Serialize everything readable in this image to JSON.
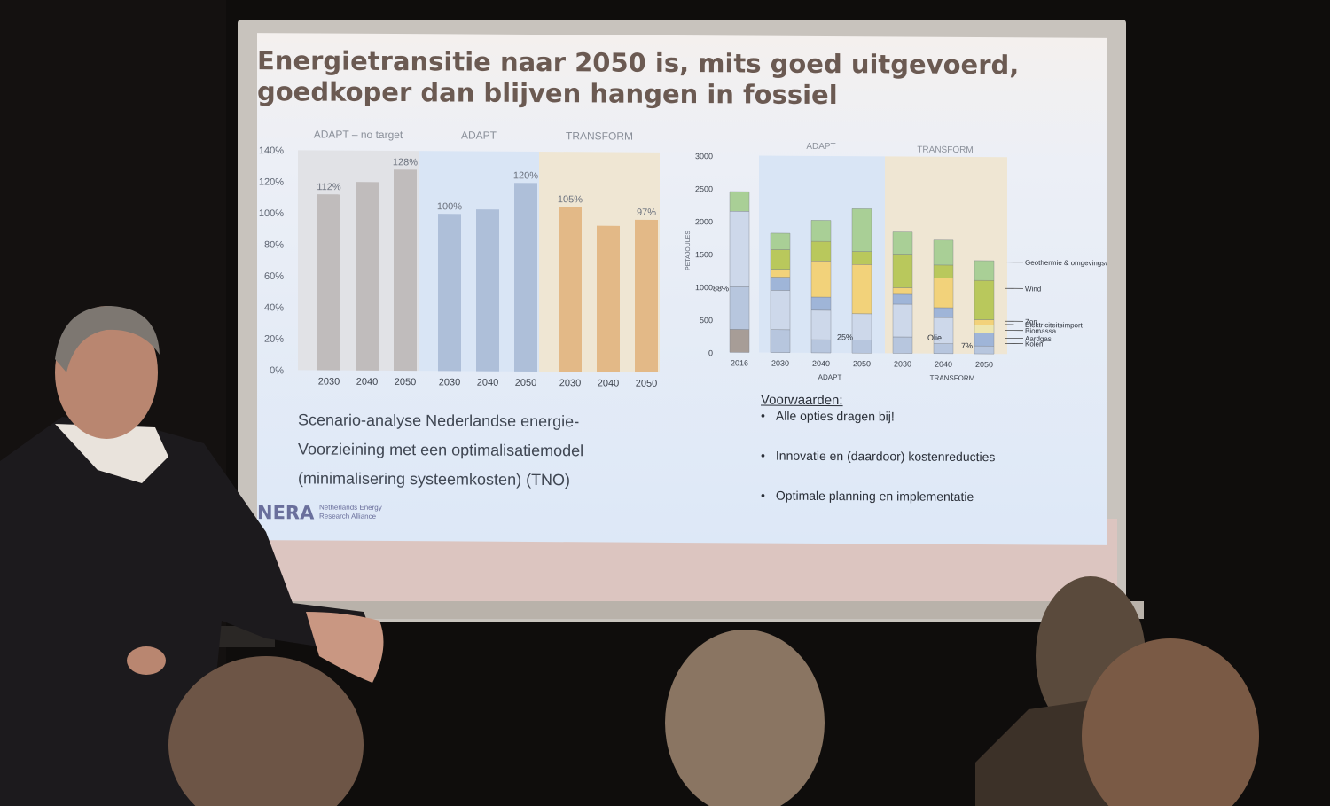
{
  "slide": {
    "title": "Energietransitie naar 2050 is, mits goed uitgevoerd,\ngoedkoper dan blijven hangen in fossiel",
    "description": "Scenario-analyse Nederlandse energie-\nVoorzieining met een optimalisatiemodel\n(minimalisering systeemkosten) (TNO)",
    "conditions": {
      "title": "Voorwaarden:",
      "items": [
        "Alle opties dragen bij!",
        "Innovatie en (daardoor) kostenreducties",
        "Optimale planning en implementatie"
      ]
    },
    "logo": {
      "mark": "NERA",
      "text": "Netherlands Energy\nResearch Alliance"
    }
  },
  "colors": {
    "slide_bg": "#e6edf8",
    "title": "#6b5a52",
    "gray_bar": "#c0bcbc",
    "blue_bar": "#aebfd9",
    "orange_bar": "#e3b987",
    "gray_region": "#e1e2e6",
    "blue_region": "#d9e5f5",
    "orange_region": "#efe6d3"
  },
  "chart_data": [
    {
      "type": "bar",
      "groups": [
        "ADAPT – no target",
        "ADAPT",
        "TRANSFORM"
      ],
      "categories": [
        "2030",
        "2040",
        "2050"
      ],
      "series": [
        {
          "name": "ADAPT – no target",
          "values": [
            112,
            120,
            128
          ],
          "labels": [
            "112%",
            "",
            "128%"
          ]
        },
        {
          "name": "ADAPT",
          "values": [
            100,
            103,
            120
          ],
          "labels": [
            "100%",
            "",
            "120%"
          ]
        },
        {
          "name": "TRANSFORM",
          "values": [
            105,
            93,
            97
          ],
          "labels": [
            "105%",
            "",
            "97%"
          ]
        }
      ],
      "yticks": [
        "0%",
        "20%",
        "40%",
        "60%",
        "80%",
        "100%",
        "120%",
        "140%"
      ],
      "ylim": [
        0,
        140
      ]
    },
    {
      "type": "bar",
      "stacked": true,
      "ylabel": "PETAJOULES",
      "group_labels": [
        "ADAPT",
        "TRANSFORM"
      ],
      "x": [
        "2016",
        "2030",
        "2040",
        "2050",
        "2030",
        "2040",
        "2050"
      ],
      "yticks": [
        "0",
        "500",
        "1000",
        "1500",
        "2000",
        "2500",
        "3000"
      ],
      "ylim": [
        0,
        3000
      ],
      "segment_names": [
        "Kolen",
        "Aardgas",
        "Olie",
        "Biomassa",
        "Elektriciteitsimport",
        "Zon",
        "Wind",
        "Geothermie & omgevingswarmte"
      ],
      "legend": [
        "Geothermie & omgevingswarmte",
        "Wind",
        "Zon",
        "Elektriciteitsimport",
        "Biomassa",
        "Aardgas",
        "Kolen"
      ],
      "stacks": [
        [
          350,
          650,
          1150,
          0,
          0,
          0,
          0,
          300
        ],
        [
          0,
          350,
          600,
          200,
          0,
          120,
          300,
          250
        ],
        [
          0,
          200,
          450,
          200,
          0,
          550,
          300,
          320
        ],
        [
          0,
          200,
          400,
          0,
          0,
          750,
          200,
          650
        ],
        [
          0,
          250,
          500,
          150,
          0,
          100,
          500,
          350
        ],
        [
          0,
          150,
          400,
          150,
          0,
          450,
          200,
          380
        ],
        [
          0,
          120,
          0,
          200,
          120,
          80,
          600,
          300
        ]
      ],
      "annotations": [
        "88%",
        "25%",
        "Olie",
        "7%"
      ]
    }
  ]
}
